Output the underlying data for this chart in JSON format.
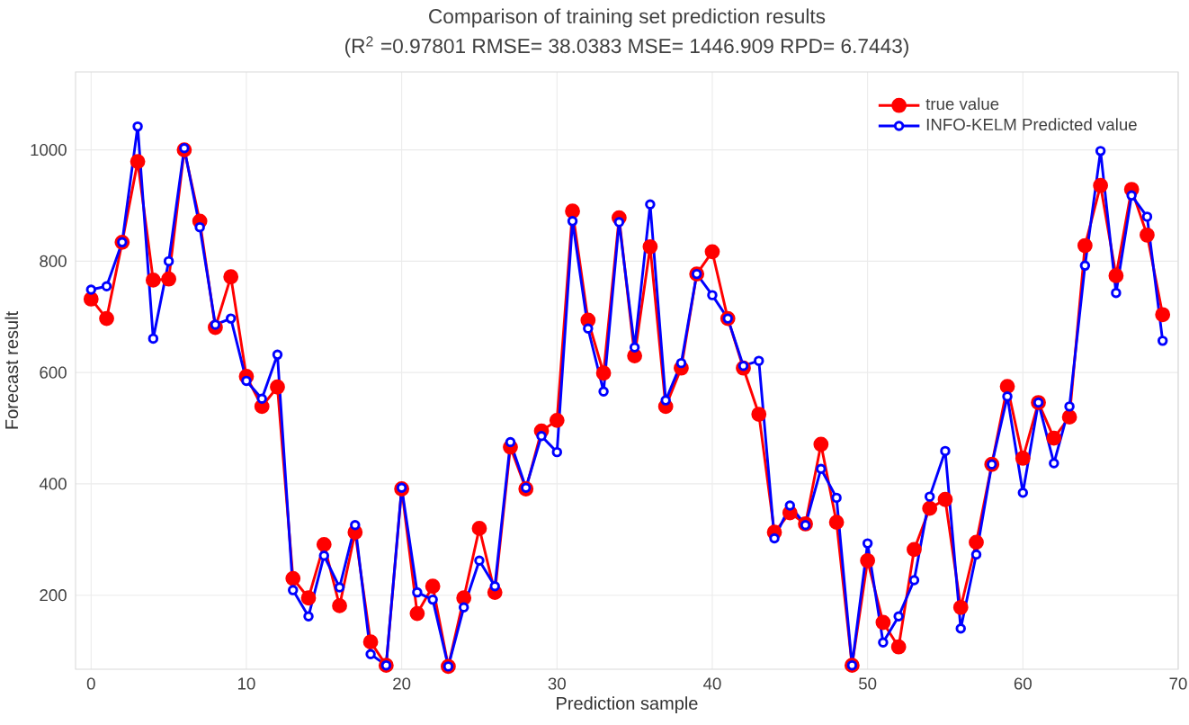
{
  "chart_data": {
    "type": "line",
    "title": "Comparison of training set prediction results",
    "subtitle": "(R$^{2}$ =0.97801 RMSE= 38.0383 MSE= 1446.909 RPD= 6.7443)",
    "xlabel": "Prediction sample",
    "ylabel": "Forecast result",
    "x": [
      0,
      1,
      2,
      3,
      4,
      5,
      6,
      7,
      8,
      9,
      10,
      11,
      12,
      13,
      14,
      15,
      16,
      17,
      18,
      19,
      20,
      21,
      22,
      23,
      24,
      25,
      26,
      27,
      28,
      29,
      30,
      31,
      32,
      33,
      34,
      35,
      36,
      37,
      38,
      39,
      40,
      41,
      42,
      43,
      44,
      45,
      46,
      47,
      48,
      49,
      50,
      51,
      52,
      53,
      54,
      55,
      56,
      57,
      58,
      59,
      60,
      61,
      62,
      63,
      64,
      65,
      66,
      67,
      68,
      69
    ],
    "series": [
      {
        "name": "true value",
        "color": "#ff0000",
        "values": [
          732,
          697,
          834,
          979,
          766,
          768,
          1000,
          872,
          681,
          772,
          593,
          539,
          574,
          230,
          195,
          291,
          181,
          313,
          116,
          74,
          391,
          167,
          216,
          72,
          195,
          320,
          205,
          466,
          391,
          495,
          514,
          890,
          694,
          599,
          878,
          630,
          826,
          539,
          608,
          777,
          817,
          697,
          608,
          525,
          313,
          348,
          328,
          471,
          331,
          74,
          262,
          151,
          107,
          282,
          356,
          372,
          178,
          295,
          435,
          575,
          446,
          546,
          482,
          520,
          828,
          936,
          774,
          929,
          847,
          704
        ]
      },
      {
        "name": "INFO-KELM Predicted value",
        "color": "#0000ff",
        "values": [
          749,
          755,
          834,
          1042,
          661,
          800,
          1003,
          861,
          686,
          697,
          585,
          553,
          632,
          209,
          162,
          271,
          214,
          326,
          94,
          74,
          393,
          205,
          192,
          72,
          178,
          262,
          216,
          475,
          393,
          486,
          457,
          872,
          679,
          566,
          870,
          645,
          902,
          550,
          617,
          777,
          739,
          697,
          612,
          621,
          302,
          361,
          326,
          427,
          375,
          74,
          293,
          115,
          162,
          227,
          377,
          459,
          140,
          273,
          435,
          557,
          384,
          546,
          437,
          539,
          792,
          998,
          743,
          918,
          880,
          657
        ]
      }
    ],
    "xlim": [
      -1,
      70
    ],
    "ylim": [
      67,
      1140
    ],
    "xticks": [
      0,
      10,
      20,
      30,
      40,
      50,
      60,
      70
    ],
    "yticks": [
      200,
      400,
      600,
      800,
      1000
    ],
    "grid": true,
    "legend": "top right",
    "marker": "circle",
    "line_style": "solid"
  }
}
